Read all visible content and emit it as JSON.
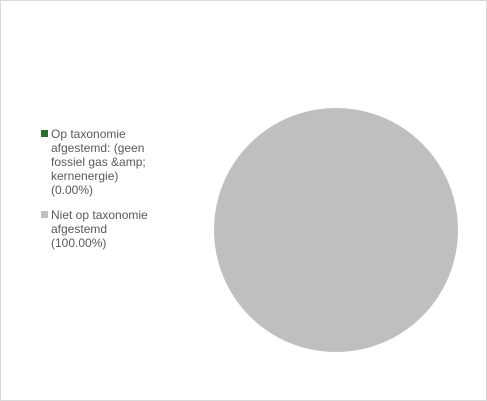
{
  "chart_data": {
    "type": "pie",
    "categories": [
      "Op taxonomie afgestemd: (geen fossiel gas &amp; kernenergie)",
      "Niet op taxonomie afgestemd"
    ],
    "values": [
      0.0,
      100.0
    ],
    "colors": [
      "#2e6b2e",
      "#bfbfbf"
    ],
    "legend": {
      "position": "left",
      "items": [
        {
          "label": "Op taxonomie\nafgestemd: (geen\nfossiel gas &amp;\nkernenergie)\n(0.00%)",
          "color": "#2e6b2e"
        },
        {
          "label": "Niet op taxonomie\nafgestemd\n(100.00%)",
          "color": "#bfbfbf"
        }
      ]
    }
  }
}
